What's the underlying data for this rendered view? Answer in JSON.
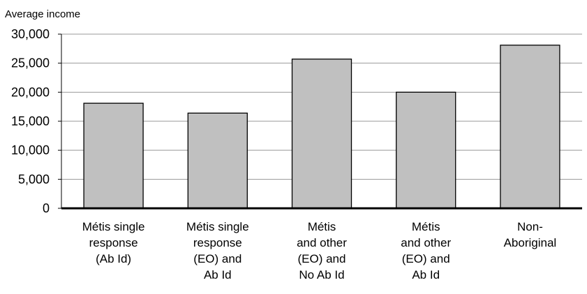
{
  "chart_data": {
    "type": "bar",
    "ylabel": "Average income",
    "ylim": [
      0,
      30000
    ],
    "yticks": [
      0,
      5000,
      10000,
      15000,
      20000,
      25000,
      30000
    ],
    "ytick_labels": [
      "0",
      "5,000",
      "10,000",
      "15,000",
      "20,000",
      "25,000",
      "30,000"
    ],
    "categories": [
      [
        "Métis single",
        "response",
        "(Ab Id)"
      ],
      [
        "Métis single",
        "response",
        "(EO) and",
        "Ab Id"
      ],
      [
        "Métis",
        "and other",
        "(EO) and",
        "No Ab Id"
      ],
      [
        "Métis",
        "and other",
        "(EO) and",
        "Ab Id"
      ],
      [
        "Non-",
        "Aboriginal"
      ]
    ],
    "values": [
      18100,
      16400,
      25700,
      20000,
      28100
    ],
    "grid": true,
    "legend": "none",
    "bar_color": "#c0c0c0",
    "bar_edge_color": "#000000",
    "grid_color": "#9a9a9a"
  }
}
